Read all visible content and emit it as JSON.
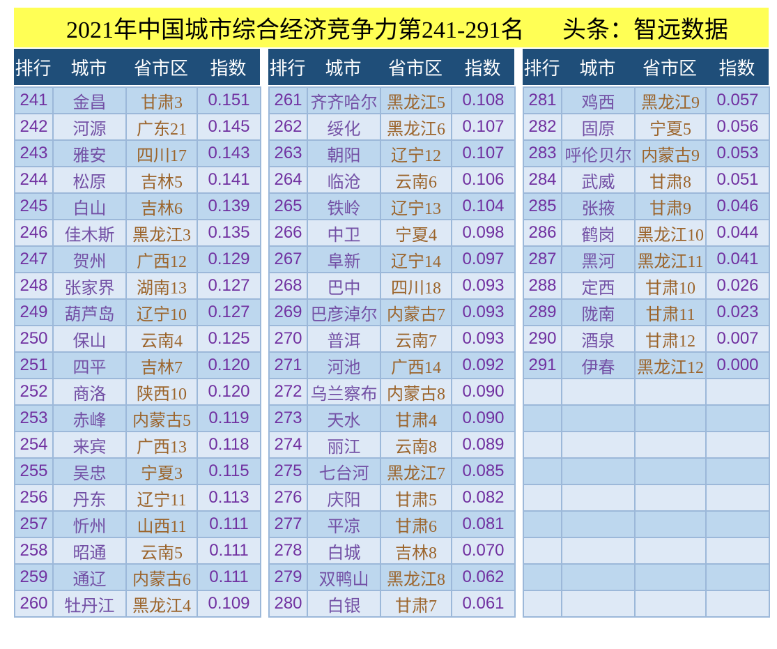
{
  "title": {
    "main": "2021年中国城市综合经济竞争力第241-291名",
    "source": "头条：智远数据"
  },
  "columns": [
    "排行",
    "城市",
    "省市区",
    "指数"
  ],
  "colors": {
    "title_bg": "#FFFF55",
    "header_bg": "#1F4E79",
    "row_dark": "#BDD7EE",
    "row_light": "#DEE9F6",
    "border": "#9CB8D9",
    "rank_index_text": "#7030A0",
    "city_text": "#7350A5",
    "province_text": "#9B642B"
  },
  "tables": [
    {
      "rows": [
        [
          "241",
          "金昌",
          "甘肃3",
          "0.151"
        ],
        [
          "242",
          "河源",
          "广东21",
          "0.145"
        ],
        [
          "243",
          "雅安",
          "四川17",
          "0.143"
        ],
        [
          "244",
          "松原",
          "吉林5",
          "0.141"
        ],
        [
          "245",
          "白山",
          "吉林6",
          "0.139"
        ],
        [
          "246",
          "佳木斯",
          "黑龙江3",
          "0.135"
        ],
        [
          "247",
          "贺州",
          "广西12",
          "0.129"
        ],
        [
          "248",
          "张家界",
          "湖南13",
          "0.127"
        ],
        [
          "249",
          "葫芦岛",
          "辽宁10",
          "0.127"
        ],
        [
          "250",
          "保山",
          "云南4",
          "0.125"
        ],
        [
          "251",
          "四平",
          "吉林7",
          "0.120"
        ],
        [
          "252",
          "商洛",
          "陕西10",
          "0.120"
        ],
        [
          "253",
          "赤峰",
          "内蒙古5",
          "0.119"
        ],
        [
          "254",
          "来宾",
          "广西13",
          "0.118"
        ],
        [
          "255",
          "吴忠",
          "宁夏3",
          "0.115"
        ],
        [
          "256",
          "丹东",
          "辽宁11",
          "0.113"
        ],
        [
          "257",
          "忻州",
          "山西11",
          "0.111"
        ],
        [
          "258",
          "昭通",
          "云南5",
          "0.111"
        ],
        [
          "259",
          "通辽",
          "内蒙古6",
          "0.111"
        ],
        [
          "260",
          "牡丹江",
          "黑龙江4",
          "0.109"
        ]
      ]
    },
    {
      "rows": [
        [
          "261",
          "齐齐哈尔",
          "黑龙江5",
          "0.108"
        ],
        [
          "262",
          "绥化",
          "黑龙江6",
          "0.107"
        ],
        [
          "263",
          "朝阳",
          "辽宁12",
          "0.107"
        ],
        [
          "264",
          "临沧",
          "云南6",
          "0.106"
        ],
        [
          "265",
          "铁岭",
          "辽宁13",
          "0.104"
        ],
        [
          "266",
          "中卫",
          "宁夏4",
          "0.098"
        ],
        [
          "267",
          "阜新",
          "辽宁14",
          "0.097"
        ],
        [
          "268",
          "巴中",
          "四川18",
          "0.093"
        ],
        [
          "269",
          "巴彦淖尔",
          "内蒙古7",
          "0.093"
        ],
        [
          "270",
          "普洱",
          "云南7",
          "0.093"
        ],
        [
          "271",
          "河池",
          "广西14",
          "0.092"
        ],
        [
          "272",
          "乌兰察布",
          "内蒙古8",
          "0.090"
        ],
        [
          "273",
          "天水",
          "甘肃4",
          "0.090"
        ],
        [
          "274",
          "丽江",
          "云南8",
          "0.089"
        ],
        [
          "275",
          "七台河",
          "黑龙江7",
          "0.085"
        ],
        [
          "276",
          "庆阳",
          "甘肃5",
          "0.082"
        ],
        [
          "277",
          "平凉",
          "甘肃6",
          "0.081"
        ],
        [
          "278",
          "白城",
          "吉林8",
          "0.070"
        ],
        [
          "279",
          "双鸭山",
          "黑龙江8",
          "0.062"
        ],
        [
          "280",
          "白银",
          "甘肃7",
          "0.061"
        ]
      ]
    },
    {
      "rows": [
        [
          "281",
          "鸡西",
          "黑龙江9",
          "0.057"
        ],
        [
          "282",
          "固原",
          "宁夏5",
          "0.056"
        ],
        [
          "283",
          "呼伦贝尔",
          "内蒙古9",
          "0.053"
        ],
        [
          "284",
          "武威",
          "甘肃8",
          "0.051"
        ],
        [
          "285",
          "张掖",
          "甘肃9",
          "0.046"
        ],
        [
          "286",
          "鹤岗",
          "黑龙江10",
          "0.044"
        ],
        [
          "287",
          "黑河",
          "黑龙江11",
          "0.041"
        ],
        [
          "288",
          "定西",
          "甘肃10",
          "0.026"
        ],
        [
          "289",
          "陇南",
          "甘肃11",
          "0.023"
        ],
        [
          "290",
          "酒泉",
          "甘肃12",
          "0.007"
        ],
        [
          "291",
          "伊春",
          "黑龙江12",
          "0.000"
        ],
        [
          "",
          "",
          "",
          ""
        ],
        [
          "",
          "",
          "",
          ""
        ],
        [
          "",
          "",
          "",
          ""
        ],
        [
          "",
          "",
          "",
          ""
        ],
        [
          "",
          "",
          "",
          ""
        ],
        [
          "",
          "",
          "",
          ""
        ],
        [
          "",
          "",
          "",
          ""
        ],
        [
          "",
          "",
          "",
          ""
        ],
        [
          "",
          "",
          "",
          ""
        ]
      ]
    }
  ],
  "chart_data": {
    "type": "table",
    "title": "2021年中国城市综合经济竞争力第241-291名",
    "source": "头条：智远数据",
    "columns": [
      "排行",
      "城市",
      "省市区",
      "指数"
    ],
    "rows": [
      [
        241,
        "金昌",
        "甘肃3",
        0.151
      ],
      [
        242,
        "河源",
        "广东21",
        0.145
      ],
      [
        243,
        "雅安",
        "四川17",
        0.143
      ],
      [
        244,
        "松原",
        "吉林5",
        0.141
      ],
      [
        245,
        "白山",
        "吉林6",
        0.139
      ],
      [
        246,
        "佳木斯",
        "黑龙江3",
        0.135
      ],
      [
        247,
        "贺州",
        "广西12",
        0.129
      ],
      [
        248,
        "张家界",
        "湖南13",
        0.127
      ],
      [
        249,
        "葫芦岛",
        "辽宁10",
        0.127
      ],
      [
        250,
        "保山",
        "云南4",
        0.125
      ],
      [
        251,
        "四平",
        "吉林7",
        0.12
      ],
      [
        252,
        "商洛",
        "陕西10",
        0.12
      ],
      [
        253,
        "赤峰",
        "内蒙古5",
        0.119
      ],
      [
        254,
        "来宾",
        "广西13",
        0.118
      ],
      [
        255,
        "吴忠",
        "宁夏3",
        0.115
      ],
      [
        256,
        "丹东",
        "辽宁11",
        0.113
      ],
      [
        257,
        "忻州",
        "山西11",
        0.111
      ],
      [
        258,
        "昭通",
        "云南5",
        0.111
      ],
      [
        259,
        "通辽",
        "内蒙古6",
        0.111
      ],
      [
        260,
        "牡丹江",
        "黑龙江4",
        0.109
      ],
      [
        261,
        "齐齐哈尔",
        "黑龙江5",
        0.108
      ],
      [
        262,
        "绥化",
        "黑龙江6",
        0.107
      ],
      [
        263,
        "朝阳",
        "辽宁12",
        0.107
      ],
      [
        264,
        "临沧",
        "云南6",
        0.106
      ],
      [
        265,
        "铁岭",
        "辽宁13",
        0.104
      ],
      [
        266,
        "中卫",
        "宁夏4",
        0.098
      ],
      [
        267,
        "阜新",
        "辽宁14",
        0.097
      ],
      [
        268,
        "巴中",
        "四川18",
        0.093
      ],
      [
        269,
        "巴彦淖尔",
        "内蒙古7",
        0.093
      ],
      [
        270,
        "普洱",
        "云南7",
        0.093
      ],
      [
        271,
        "河池",
        "广西14",
        0.092
      ],
      [
        272,
        "乌兰察布",
        "内蒙古8",
        0.09
      ],
      [
        273,
        "天水",
        "甘肃4",
        0.09
      ],
      [
        274,
        "丽江",
        "云南8",
        0.089
      ],
      [
        275,
        "七台河",
        "黑龙江7",
        0.085
      ],
      [
        276,
        "庆阳",
        "甘肃5",
        0.082
      ],
      [
        277,
        "平凉",
        "甘肃6",
        0.081
      ],
      [
        278,
        "白城",
        "吉林8",
        0.07
      ],
      [
        279,
        "双鸭山",
        "黑龙江8",
        0.062
      ],
      [
        280,
        "白银",
        "甘肃7",
        0.061
      ],
      [
        281,
        "鸡西",
        "黑龙江9",
        0.057
      ],
      [
        282,
        "固原",
        "宁夏5",
        0.056
      ],
      [
        283,
        "呼伦贝尔",
        "内蒙古9",
        0.053
      ],
      [
        284,
        "武威",
        "甘肃8",
        0.051
      ],
      [
        285,
        "张掖",
        "甘肃9",
        0.046
      ],
      [
        286,
        "鹤岗",
        "黑龙江10",
        0.044
      ],
      [
        287,
        "黑河",
        "黑龙江11",
        0.041
      ],
      [
        288,
        "定西",
        "甘肃10",
        0.026
      ],
      [
        289,
        "陇南",
        "甘肃11",
        0.023
      ],
      [
        290,
        "酒泉",
        "甘肃12",
        0.007
      ],
      [
        291,
        "伊春",
        "黑龙江12",
        0.0
      ]
    ]
  }
}
